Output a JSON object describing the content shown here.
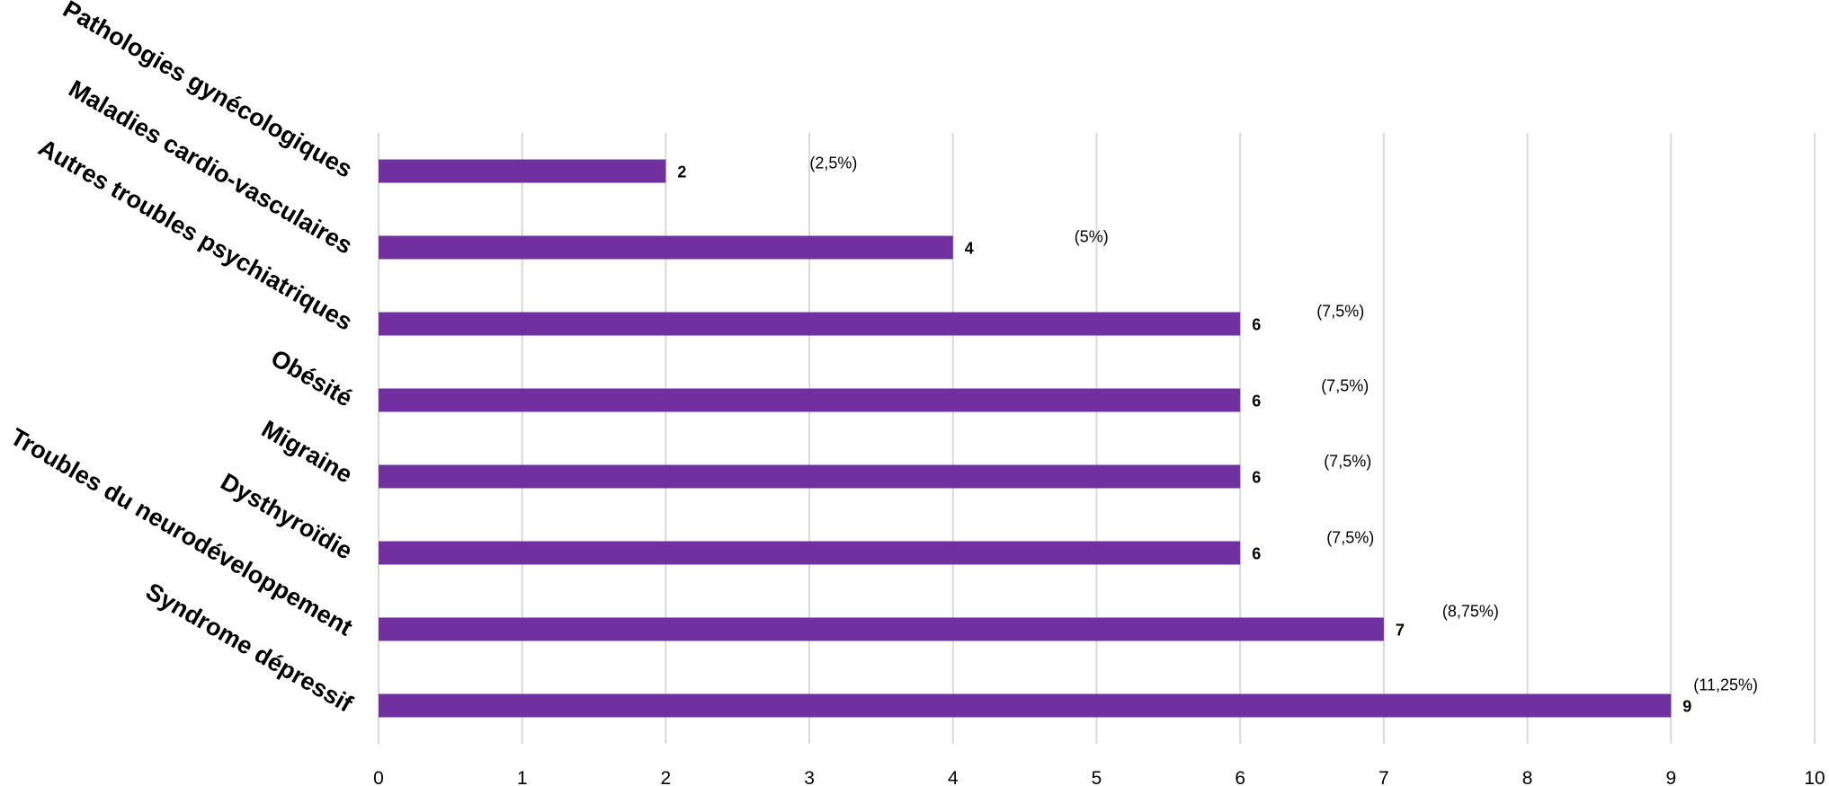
{
  "chart_data": {
    "type": "bar",
    "orientation": "horizontal",
    "title": "",
    "xlabel": "",
    "ylabel": "",
    "xlim": [
      0,
      10
    ],
    "x_ticks": [
      "0",
      "1",
      "2",
      "3",
      "4",
      "5",
      "6",
      "7",
      "8",
      "9",
      "10"
    ],
    "grid": true,
    "legend": "none",
    "bar_color": "#7030a0",
    "categories": [
      "Pathologies gynécologiques",
      "Maladies cardio-vasculaires",
      "Autres troubles psychiatriques",
      "Obésité",
      "Migraine",
      "Dysthyroïdie",
      "Troubles du neurodéveloppement",
      "Syndrome dépressif"
    ],
    "values": [
      2,
      4,
      6,
      6,
      6,
      6,
      7,
      9
    ],
    "value_labels": [
      "2",
      "4",
      "6",
      "6",
      "6",
      "6",
      "7",
      "9"
    ],
    "percent_labels": [
      "(2,5%)",
      "(5%)",
      "(7,5%)",
      "(7,5%)",
      "(7,5%)",
      "(7,5%)",
      "(8,75%)",
      "(11,25%)"
    ]
  }
}
